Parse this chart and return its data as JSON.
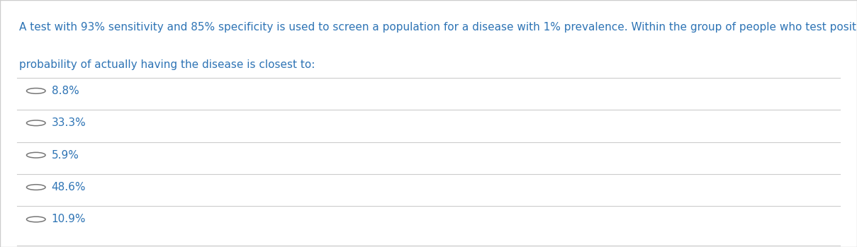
{
  "question_line1": "A test with 93% sensitivity and 85% specificity is used to screen a population for a disease with 1% prevalence. Within the group of people who test positive, the",
  "question_line2": "probability of actually having the disease is closest to:",
  "options": [
    "8.8%",
    "33.3%",
    "5.9%",
    "48.6%",
    "10.9%"
  ],
  "question_color": "#2e74b5",
  "option_color": "#2e74b5",
  "circle_color": "#777777",
  "line_color": "#cccccc",
  "bg_color": "#ffffff",
  "border_color": "#cccccc",
  "question_fontsize": 11.0,
  "option_fontsize": 11.0
}
